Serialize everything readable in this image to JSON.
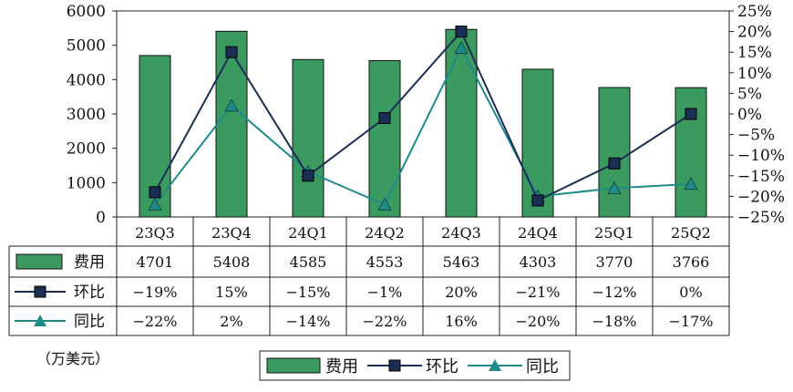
{
  "chart_data": {
    "type": "bar+line",
    "categories": [
      "23Q3",
      "23Q4",
      "24Q1",
      "24Q2",
      "24Q3",
      "24Q4",
      "25Q1",
      "25Q2"
    ],
    "series": [
      {
        "name": "费用",
        "type": "bar",
        "axis": "left",
        "color": "#3a9a60",
        "values": [
          4701,
          5408,
          4585,
          4553,
          5463,
          4303,
          3770,
          3766
        ],
        "labels": [
          "4701",
          "5408",
          "4585",
          "4553",
          "5463",
          "4303",
          "3770",
          "3766"
        ]
      },
      {
        "name": "环比",
        "type": "line",
        "marker": "square",
        "axis": "right",
        "color": "#1b2f55",
        "values": [
          -19,
          15,
          -15,
          -1,
          20,
          -21,
          -12,
          0
        ],
        "labels": [
          "−19%",
          "15%",
          "−15%",
          "−1%",
          "20%",
          "−21%",
          "−12%",
          "0%"
        ]
      },
      {
        "name": "同比",
        "type": "line",
        "marker": "triangle",
        "axis": "right",
        "color": "#1f8a8a",
        "values": [
          -22,
          2,
          -14,
          -22,
          16,
          -20,
          -18,
          -17
        ],
        "labels": [
          "−22%",
          "2%",
          "−14%",
          "−22%",
          "16%",
          "−20%",
          "−18%",
          "−17%"
        ]
      }
    ],
    "left_axis": {
      "ylim": [
        0,
        6000
      ],
      "ticks": [
        "0",
        "1000",
        "2000",
        "3000",
        "4000",
        "5000",
        "6000"
      ]
    },
    "right_axis": {
      "ylim": [
        -25,
        25
      ],
      "ticks": [
        "25%",
        "20%",
        "15%",
        "10%",
        "5%",
        "0%",
        "−5%",
        "−10%",
        "−15%",
        "−20%",
        "−25%"
      ]
    },
    "unit_label": "（万美元）",
    "legend": {
      "placement": "bottom-center",
      "items": [
        "费用",
        "环比",
        "同比"
      ]
    },
    "data_table": true,
    "grid": false
  }
}
